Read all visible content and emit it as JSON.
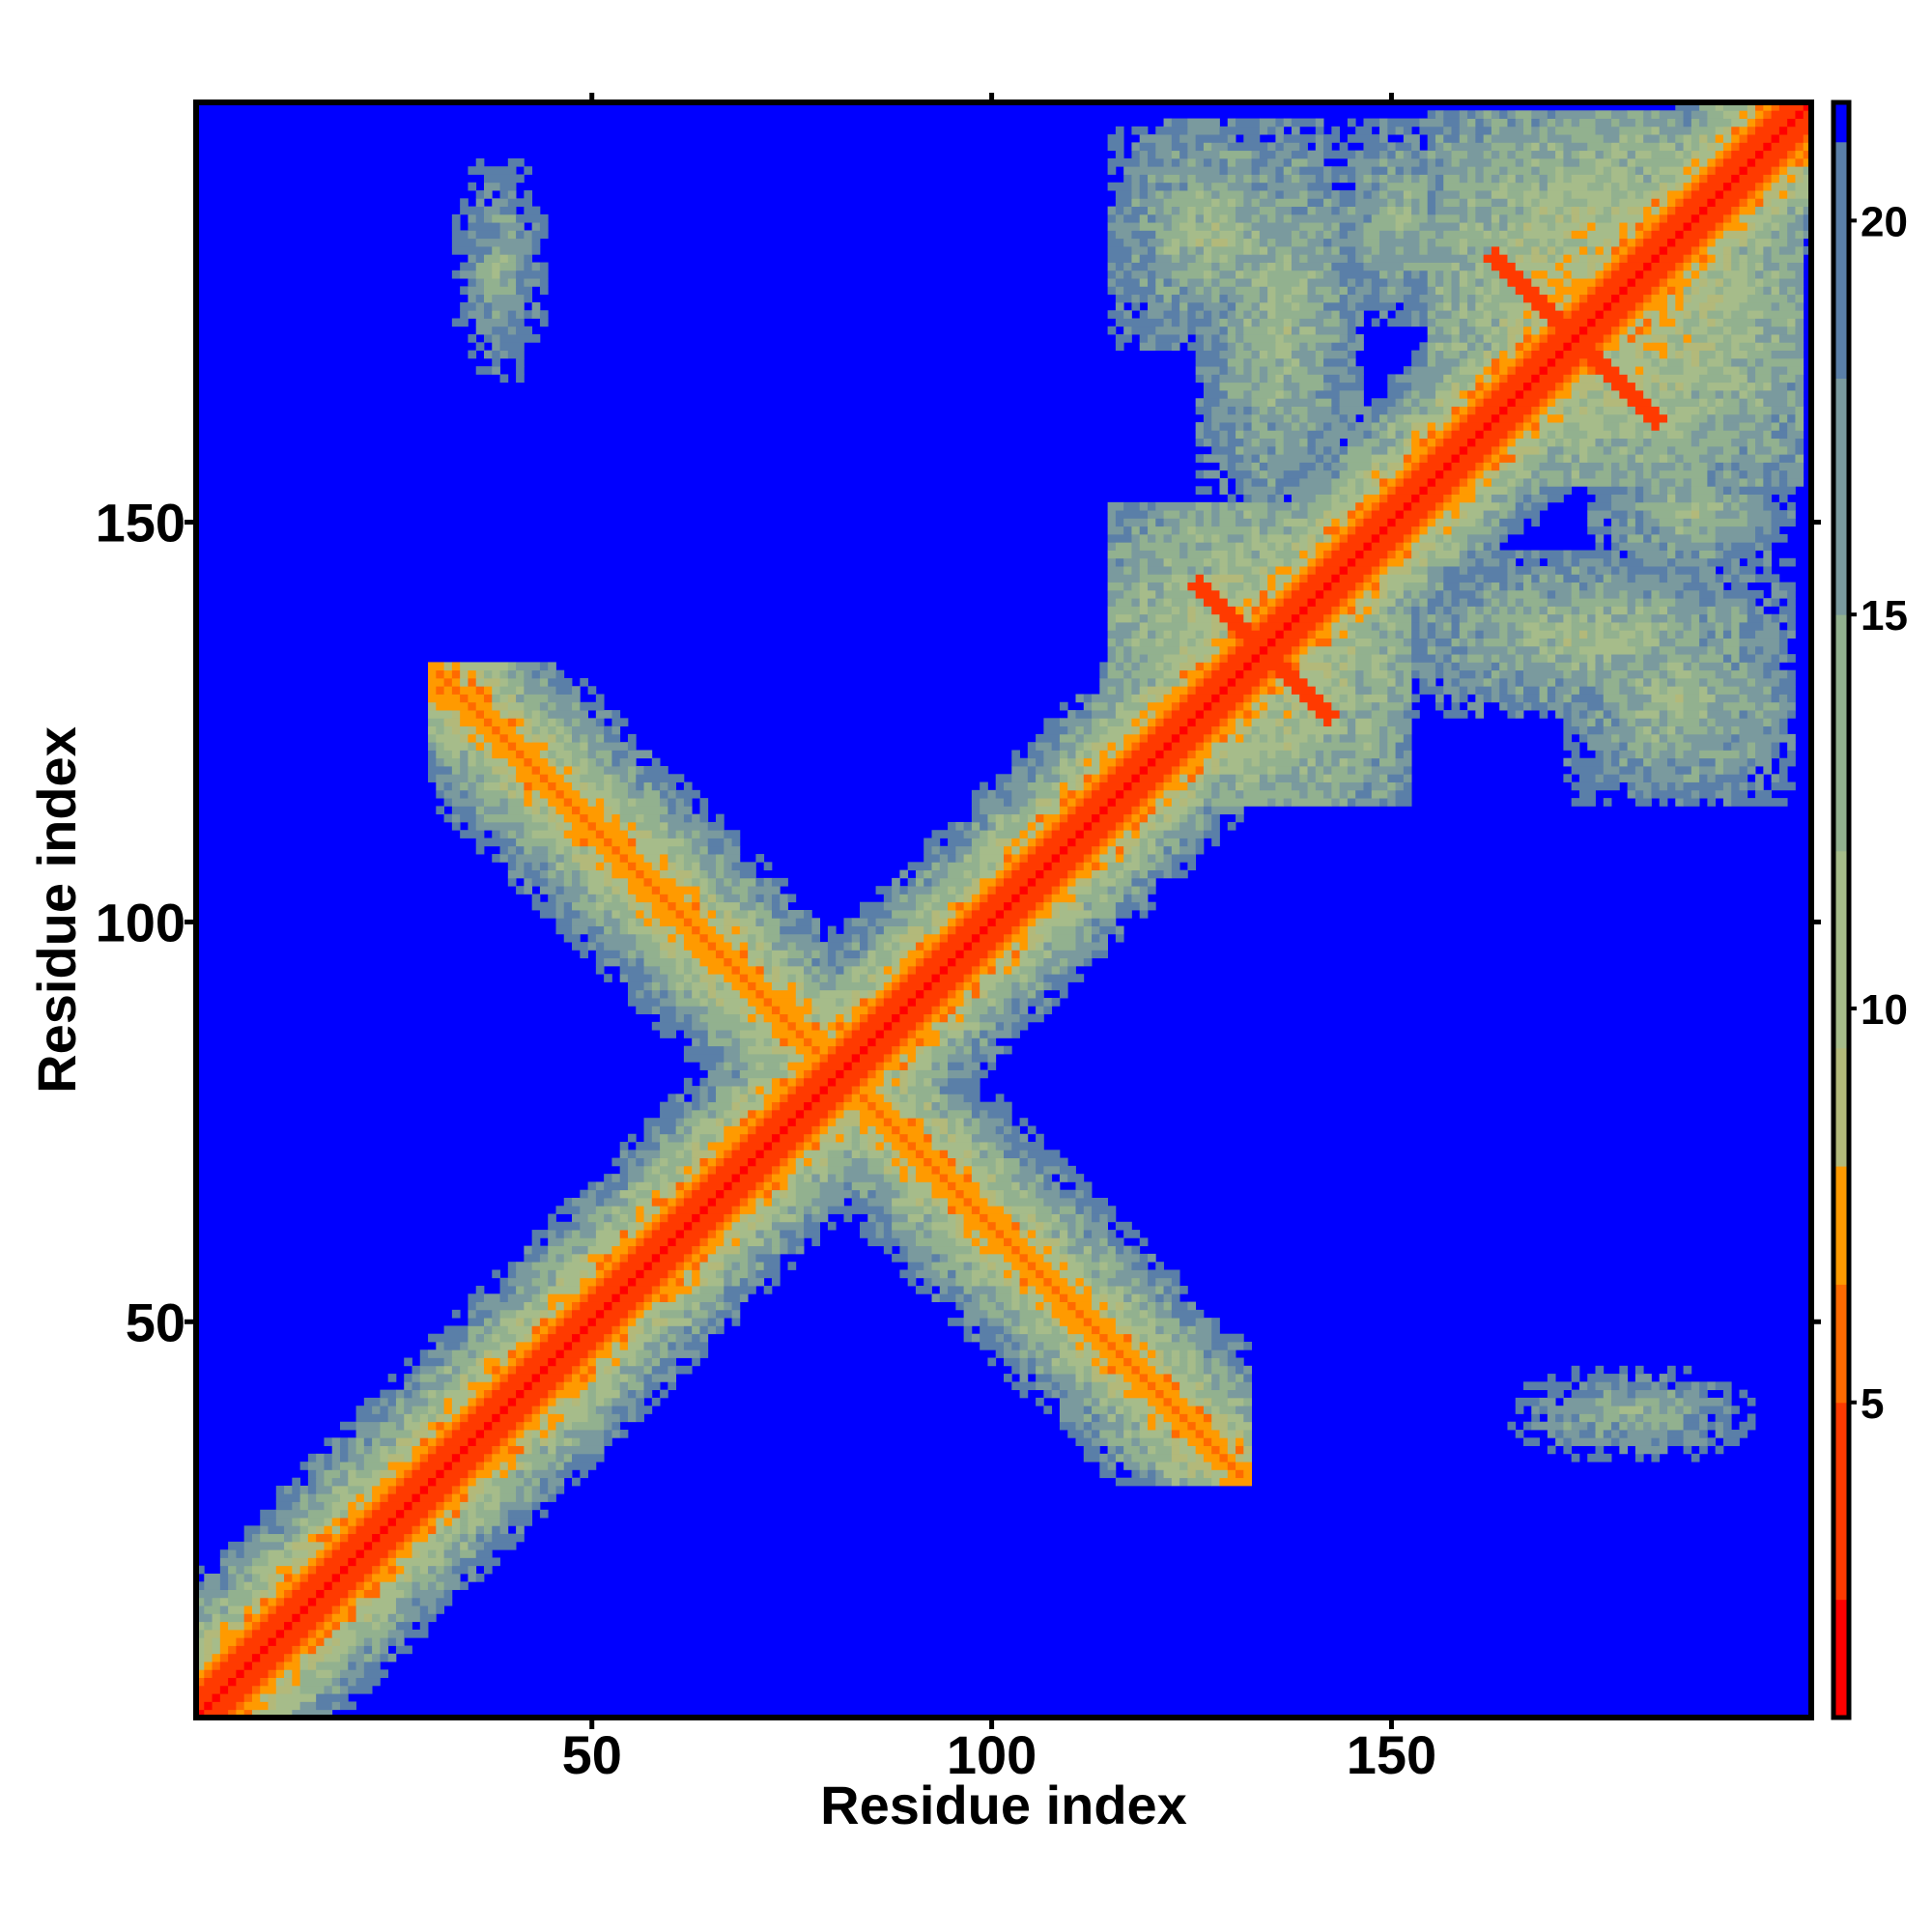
{
  "chart_data": {
    "type": "heatmap",
    "title": "",
    "xlabel": "Residue index",
    "ylabel": "Residue index",
    "xlim": [
      1,
      202
    ],
    "ylim": [
      1,
      202
    ],
    "x_ticks": [
      50,
      100,
      150
    ],
    "y_ticks": [
      50,
      100,
      150
    ],
    "colorbar": {
      "range": [
        1,
        21.5
      ],
      "ticks": [
        5,
        10,
        15,
        20
      ],
      "palette": [
        {
          "max": 2.5,
          "color": "#ff0000"
        },
        {
          "max": 5.0,
          "color": "#ff3a00"
        },
        {
          "max": 6.5,
          "color": "#ff6a00"
        },
        {
          "max": 8.0,
          "color": "#ff9a00"
        },
        {
          "max": 9.5,
          "color": "#b3b97a"
        },
        {
          "max": 12.0,
          "color": "#a6bc8a"
        },
        {
          "max": 15.0,
          "color": "#92b18f"
        },
        {
          "max": 18.0,
          "color": "#7a9a9e"
        },
        {
          "max": 21.0,
          "color": "#5a7fa8"
        },
        {
          "max": 99,
          "color": "#0000ff"
        }
      ],
      "background_color": "#0000ff"
    },
    "structure_features": [
      {
        "kind": "main_diagonal",
        "from": 1,
        "to": 202,
        "description_values": {
          "core": 1.5,
          "band_width": 10
        }
      },
      {
        "kind": "antidiagonal_band",
        "i_range": [
          33,
          128
        ],
        "j_center_sum": 162,
        "description_values": {
          "core": 6
        }
      },
      {
        "kind": "local_contact_block",
        "i_range": [
          115,
          152
        ],
        "j_range": [
          115,
          152
        ],
        "description_values": {
          "core": 6
        }
      },
      {
        "kind": "local_contact_block",
        "i_range": [
          155,
          201
        ],
        "j_range": [
          155,
          201
        ],
        "description_values": {
          "core": 6
        }
      },
      {
        "kind": "off_diagonal_block",
        "i_range": [
          115,
          140
        ],
        "j_range": [
          172,
          200
        ],
        "description_values": {
          "core": 12
        }
      },
      {
        "kind": "off_diagonal_block",
        "i_range": [
          165,
          200
        ],
        "j_range": [
          126,
          146
        ],
        "description_values": {
          "core": 12
        }
      },
      {
        "kind": "off_diagonal_block",
        "i_range": [
          142,
          160
        ],
        "j_range": [
          175,
          200
        ],
        "description_values": {
          "core": 12
        }
      },
      {
        "kind": "off_diagonal_block",
        "i_range": [
          165,
          200
        ],
        "j_range": [
          152,
          158
        ],
        "description_values": {
          "core": 12
        }
      },
      {
        "kind": "off_diagonal_block",
        "i_range": [
          33,
          44
        ],
        "j_range": [
          168,
          195
        ],
        "description_values": {
          "core": 14
        }
      },
      {
        "kind": "off_diagonal_block",
        "i_range": [
          165,
          195
        ],
        "j_range": [
          33,
          44
        ],
        "description_values": {
          "core": 14
        }
      }
    ]
  }
}
